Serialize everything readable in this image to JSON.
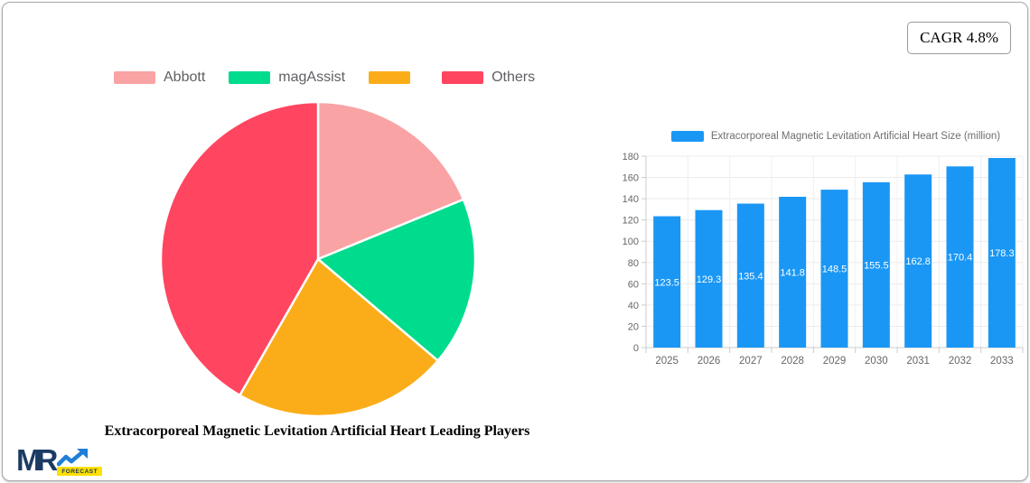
{
  "card": {
    "cagr_label": "CAGR 4.8%"
  },
  "logo": {
    "text": "MR",
    "badge": "FORECAST"
  },
  "chart_data": [
    {
      "type": "pie",
      "title": "Extracorporeal Magnetic Levitation Artificial Heart Leading Players",
      "labels": [
        "Abbott",
        "magAssist",
        "",
        "Others"
      ],
      "values": [
        18.8,
        17.4,
        22.1,
        41.7
      ],
      "colors": [
        "#F9A3A4",
        "#00DC8D",
        "#FBAD19",
        "#FF4560"
      ],
      "legend_position": "top",
      "start_angle_deg": 0,
      "slice_border_color": "#FFFFFF"
    },
    {
      "type": "bar",
      "title": "Extracorporeal Magnetic Levitation Artificial Heart Size (million)",
      "categories": [
        "2025",
        "2026",
        "2027",
        "2028",
        "2029",
        "2030",
        "2031",
        "2032",
        "2033"
      ],
      "values": [
        123.5,
        129.3,
        135.4,
        141.8,
        148.5,
        155.5,
        162.8,
        170.4,
        178.3
      ],
      "xlabel": "",
      "ylabel": "",
      "ylim": [
        0,
        180
      ],
      "ytick_step": 20,
      "yticks": [
        0,
        20,
        40,
        60,
        80,
        100,
        120,
        140,
        160,
        180
      ],
      "grid": true,
      "legend_position": "top",
      "bar_color": "#1A97F5",
      "data_label_color": "#FFFFFF",
      "axis_label_color": "#666666"
    }
  ]
}
